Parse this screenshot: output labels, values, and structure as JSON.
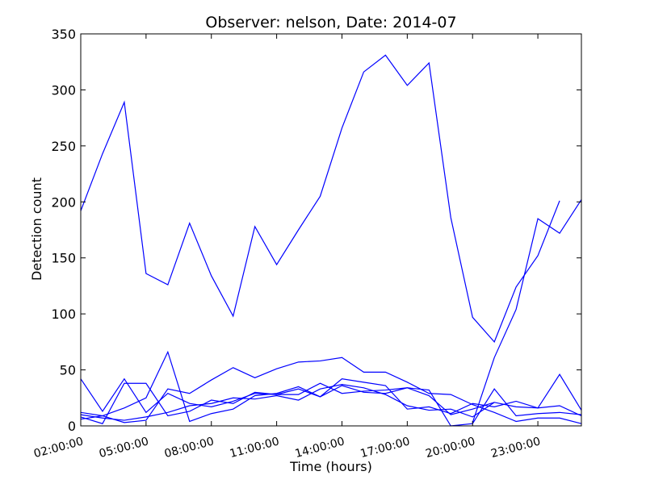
{
  "chart_data": {
    "type": "line",
    "title": "Observer: nelson, Date: 2014-07",
    "xlabel": "Time (hours)",
    "ylabel": "Detection count",
    "xlim": [
      2,
      25
    ],
    "ylim": [
      0,
      350
    ],
    "xticks": [
      2,
      5,
      8,
      11,
      14,
      17,
      20,
      23
    ],
    "xtick_labels": [
      "02:00:00",
      "05:00:00",
      "08:00:00",
      "11:00:00",
      "14:00:00",
      "17:00:00",
      "20:00:00",
      "23:00:00"
    ],
    "yticks": [
      0,
      50,
      100,
      150,
      200,
      250,
      300,
      350
    ],
    "ytick_labels": [
      "0",
      "50",
      "100",
      "150",
      "200",
      "250",
      "300",
      "350"
    ],
    "grid": false,
    "legend": false,
    "line_color": "#0000ff",
    "series": [
      {
        "x": [
          2,
          3,
          4,
          5,
          6,
          7,
          8,
          9,
          10,
          11,
          12,
          13,
          14,
          15,
          16,
          17,
          18,
          19,
          20,
          21,
          22,
          23,
          24,
          25
        ],
        "values": [
          192,
          243,
          289,
          136,
          126,
          181,
          134,
          98,
          178,
          144,
          175,
          205,
          266,
          316,
          331,
          304,
          324,
          186,
          97,
          75,
          124,
          152,
          201,
          null
        ]
      },
      {
        "x": [
          2,
          3,
          4,
          5,
          6,
          7,
          8,
          9,
          10,
          11,
          12,
          13,
          14,
          15,
          16,
          17,
          18,
          19,
          20,
          21,
          22,
          23,
          24,
          25
        ],
        "values": [
          null,
          null,
          null,
          null,
          null,
          null,
          null,
          null,
          null,
          null,
          null,
          null,
          null,
          null,
          null,
          null,
          null,
          null,
          3,
          61,
          104,
          185,
          172,
          202
        ]
      },
      {
        "x": [
          2,
          3,
          4,
          5,
          6,
          7,
          8,
          9,
          10,
          11,
          12,
          13,
          14,
          15,
          16,
          17,
          18,
          19,
          20,
          21,
          22,
          23,
          24,
          25
        ],
        "values": [
          42,
          13,
          42,
          12,
          29,
          20,
          17,
          22,
          29,
          28,
          28,
          38,
          29,
          31,
          32,
          34,
          32,
          0,
          2,
          33,
          9,
          11,
          12,
          10
        ]
      },
      {
        "x": [
          2,
          3,
          4,
          5,
          6,
          7,
          8,
          9,
          10,
          11,
          12,
          13,
          14,
          15,
          16,
          17,
          18,
          19,
          20,
          21,
          22,
          23,
          24,
          25
        ],
        "values": [
          8,
          2,
          38,
          38,
          9,
          13,
          23,
          20,
          30,
          28,
          33,
          26,
          42,
          39,
          36,
          15,
          17,
          11,
          20,
          17,
          22,
          16,
          46,
          14
        ]
      },
      {
        "x": [
          2,
          3,
          4,
          5,
          6,
          7,
          8,
          9,
          10,
          11,
          12,
          13,
          14,
          15,
          16,
          17,
          18,
          19,
          20,
          21,
          22,
          23,
          24,
          25
        ],
        "values": [
          12,
          9,
          16,
          25,
          66,
          4,
          11,
          15,
          27,
          29,
          35,
          26,
          36,
          30,
          29,
          34,
          27,
          10,
          15,
          21,
          17,
          16,
          18,
          9
        ]
      },
      {
        "x": [
          2,
          3,
          4,
          5,
          6,
          7,
          8,
          9,
          10,
          11,
          12,
          13,
          14,
          15,
          16,
          17,
          18,
          19,
          20,
          21,
          22,
          23,
          24,
          25
        ],
        "values": [
          6,
          9,
          3,
          5,
          33,
          29,
          41,
          52,
          43,
          51,
          57,
          58,
          61,
          48,
          48,
          39,
          29,
          28,
          19,
          12,
          4,
          7,
          7,
          2
        ]
      },
      {
        "x": [
          2,
          3,
          4,
          5,
          6,
          7,
          8,
          9,
          10,
          11,
          12,
          13,
          14,
          15,
          16,
          17,
          18,
          19,
          20,
          21,
          22,
          23,
          24,
          25
        ],
        "values": [
          10,
          7,
          5,
          8,
          12,
          18,
          20,
          25,
          24,
          27,
          23,
          33,
          37,
          34,
          28,
          18,
          14,
          15,
          8,
          21,
          null,
          null,
          null,
          null
        ]
      }
    ]
  }
}
